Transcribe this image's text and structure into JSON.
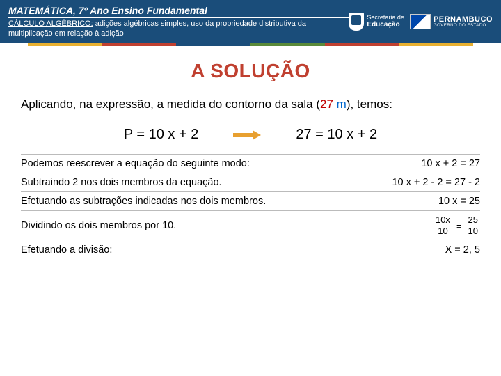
{
  "header": {
    "title": "MATEMÁTICA, 7º Ano Ensino Fundamental",
    "subtitle_pre": "CÁLCULO ALGÉBRICO:",
    "subtitle_rest": " adições algébricas simples, uso da propriedade distributiva da multiplicação em relação à adição",
    "logo1_line1": "Secretaria de",
    "logo1_line2": "Educação",
    "logo2_line1": "PERNAMBUCO",
    "logo2_line2": "GOVERNO DO ESTADO"
  },
  "colorbar": [
    "#e8b030",
    "#c04030",
    "#1a4d7a",
    "#5a8a3a",
    "#c04030",
    "#e8b030"
  ],
  "main_title": "A SOLUÇÃO",
  "intro_p1": "Aplicando, na expressão, a medida do contorno da sala (",
  "intro_num": "27",
  "intro_unit": " m",
  "intro_p2": "), temos:",
  "eq_left": "P = 10 x + 2",
  "eq_right": "27 = 10 x + 2",
  "steps": [
    {
      "label": "Podemos reescrever a equação do seguinte modo:",
      "result": "10 x + 2 = 27"
    },
    {
      "label": "Subtraindo 2 nos dois membros da equação.",
      "result": "10 x + 2 - 2 = 27 - 2"
    },
    {
      "label": "Efetuando as subtrações indicadas nos dois membros.",
      "result": "10 x = 25"
    }
  ],
  "frac_step": {
    "label": "Dividindo os dois membros por 10.",
    "left_top": "10x",
    "left_bot": "10",
    "eq": "=",
    "right_top": "25",
    "right_bot": "10"
  },
  "last_step": {
    "label": "Efetuando a divisão:",
    "result": "X = 2, 5"
  }
}
